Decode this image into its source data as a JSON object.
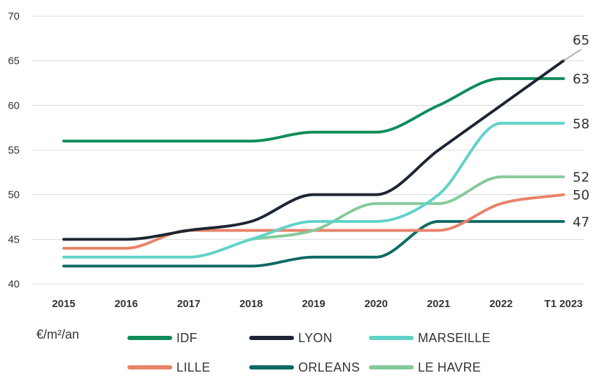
{
  "chart_data": {
    "type": "line",
    "unit_label": "€/m²/an",
    "categories": [
      "2015",
      "2016",
      "2017",
      "2018",
      "2019",
      "2020",
      "2021",
      "2022",
      "T1 2023"
    ],
    "ylim": [
      40,
      70
    ],
    "yticks": [
      "40",
      "45",
      "50",
      "55",
      "60",
      "65",
      "70"
    ],
    "grid": true,
    "legend_position": "bottom",
    "series": [
      {
        "name": "IDF",
        "color": "#0e8c5a",
        "values": [
          56,
          56,
          56,
          56,
          57,
          57,
          60,
          63,
          63
        ],
        "end_label": "63"
      },
      {
        "name": "LYON",
        "color": "#1c2533",
        "values": [
          45,
          45,
          46,
          47,
          50,
          50,
          55,
          60,
          65
        ],
        "end_label": "65"
      },
      {
        "name": "MARSEILLE",
        "color": "#5fd3c9",
        "values": [
          43,
          43,
          43,
          45,
          47,
          47,
          50,
          58,
          58
        ],
        "end_label": "58"
      },
      {
        "name": "LILLE",
        "color": "#e8826a",
        "values": [
          44,
          44,
          46,
          46,
          46,
          46,
          46,
          49,
          50
        ],
        "end_label": "50"
      },
      {
        "name": "ORLEANS",
        "color": "#0e6a63",
        "values": [
          42,
          42,
          42,
          42,
          43,
          43,
          47,
          47,
          47
        ],
        "end_label": "47"
      },
      {
        "name": "LE HAVRE",
        "color": "#86c99a",
        "values": [
          null,
          null,
          null,
          45,
          46,
          49,
          49,
          52,
          52
        ],
        "end_label": "52"
      }
    ]
  }
}
